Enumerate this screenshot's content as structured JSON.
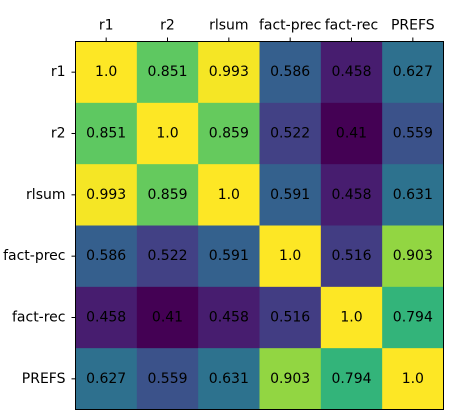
{
  "chart_data": {
    "type": "heatmap",
    "title": "",
    "xlabel": "",
    "ylabel": "",
    "labels": [
      "r1",
      "r2",
      "rlsum",
      "fact-prec",
      "fact-rec",
      "PREFS"
    ],
    "values": [
      [
        1.0,
        0.851,
        0.993,
        0.586,
        0.458,
        0.627
      ],
      [
        0.851,
        1.0,
        0.859,
        0.522,
        0.41,
        0.559
      ],
      [
        0.993,
        0.859,
        1.0,
        0.591,
        0.458,
        0.631
      ],
      [
        0.586,
        0.522,
        0.591,
        1.0,
        0.516,
        0.903
      ],
      [
        0.458,
        0.41,
        0.458,
        0.516,
        1.0,
        0.794
      ],
      [
        0.627,
        0.559,
        0.631,
        0.903,
        0.794,
        1.0
      ]
    ],
    "value_labels": [
      [
        "1.0",
        "0.851",
        "0.993",
        "0.586",
        "0.458",
        "0.627"
      ],
      [
        "0.851",
        "1.0",
        "0.859",
        "0.522",
        "0.41",
        "0.559"
      ],
      [
        "0.993",
        "0.859",
        "1.0",
        "0.591",
        "0.458",
        "0.631"
      ],
      [
        "0.586",
        "0.522",
        "0.591",
        "1.0",
        "0.516",
        "0.903"
      ],
      [
        "0.458",
        "0.41",
        "0.458",
        "0.516",
        "1.0",
        "0.794"
      ],
      [
        "0.627",
        "0.559",
        "0.631",
        "0.903",
        "0.794",
        "1.0"
      ]
    ],
    "x_tick_position": "top",
    "colormap": "viridis",
    "color_range": [
      0.41,
      1.0
    ],
    "grid": false,
    "legend": "none"
  }
}
